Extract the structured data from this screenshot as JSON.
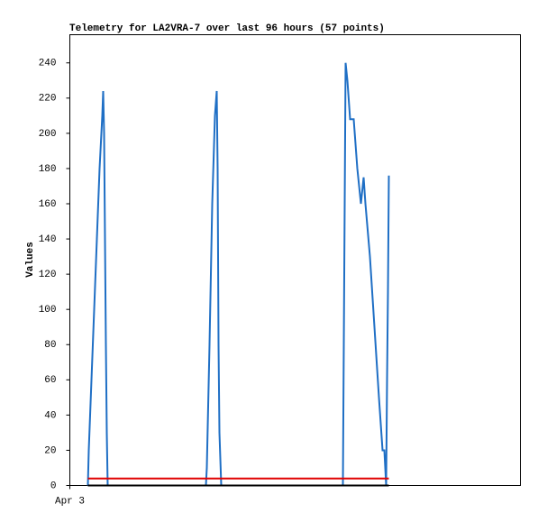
{
  "chart_data": {
    "type": "line",
    "title": "Telemetry for LA2VRA-7 over last 96 hours (57 points)",
    "y_label": "Values",
    "xlim": [
      0,
      100
    ],
    "xticks": [
      {
        "value": 0,
        "label": "Apr 3"
      }
    ],
    "ylim": [
      0,
      256
    ],
    "yticks": [
      0,
      20,
      40,
      60,
      80,
      100,
      120,
      140,
      160,
      180,
      200,
      220,
      240
    ],
    "grid": false,
    "series": [
      {
        "color": "#1f6fc5",
        "x": [
          4,
          4.2,
          4.8,
          5.4,
          6,
          6.6,
          7.2,
          7.4,
          7.6,
          7.8,
          8,
          8.2,
          8.4,
          30.2,
          30.4,
          31,
          31.6,
          32.2,
          32.6,
          32.8,
          33,
          33.2,
          33.6,
          60.6,
          60.8,
          61.2,
          61.6,
          62.2,
          63,
          63.8,
          64.6,
          65.2,
          65.6,
          66.6,
          67.6,
          68.6,
          69.4,
          69.8,
          70.2,
          70.4,
          70.6,
          70.8
        ],
        "values": [
          0,
          20,
          60,
          100,
          140,
          180,
          210,
          224,
          200,
          140,
          80,
          30,
          0,
          0,
          10,
          80,
          160,
          210,
          224,
          180,
          80,
          30,
          0,
          0,
          80,
          240,
          230,
          208,
          208,
          180,
          160,
          175,
          160,
          130,
          90,
          50,
          20,
          20,
          0,
          60,
          110,
          176
        ]
      },
      {
        "color": "#000000",
        "x": [
          4,
          70.8
        ],
        "values": [
          0,
          0
        ]
      },
      {
        "color": "#e00000",
        "x": [
          4,
          70.8
        ],
        "values": [
          4,
          4
        ]
      }
    ]
  }
}
